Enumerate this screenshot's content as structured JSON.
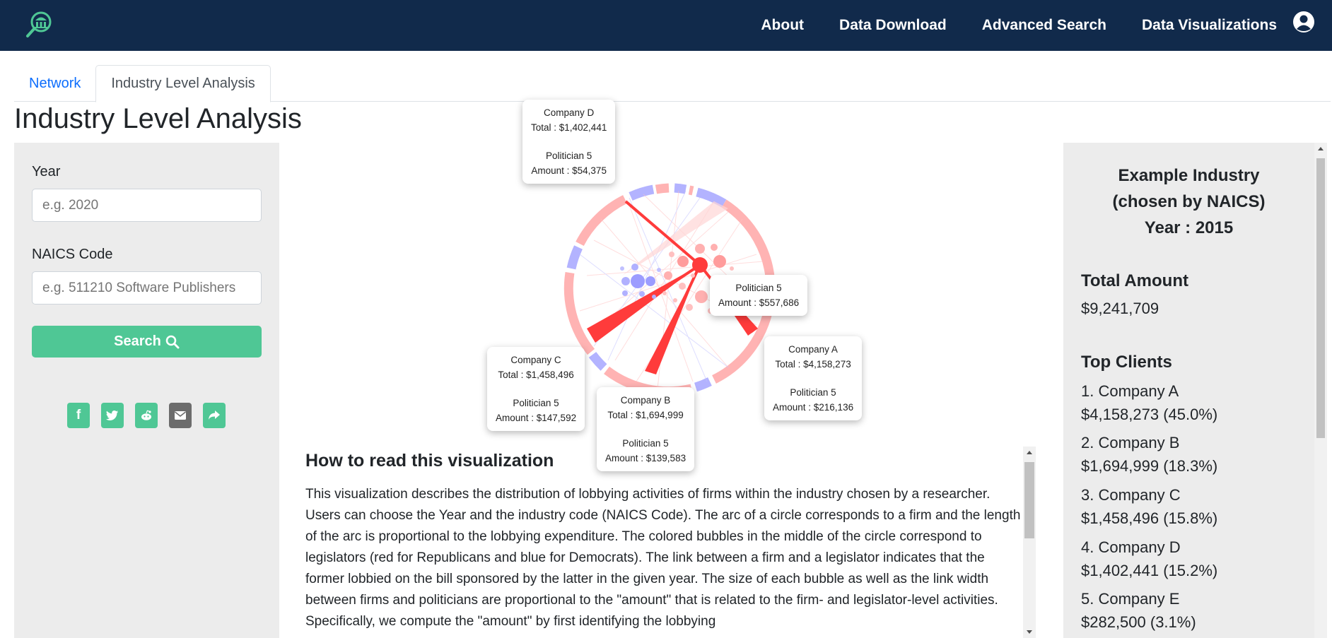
{
  "nav": {
    "links": [
      "About",
      "Data Download",
      "Advanced Search",
      "Data Visualizations"
    ]
  },
  "tabs": [
    "Network",
    "Industry Level Analysis"
  ],
  "page_title": "Industry Level Analysis",
  "form": {
    "year_label": "Year",
    "year_placeholder": "e.g. 2020",
    "naics_label": "NAICS Code",
    "naics_placeholder": "e.g. 511210 Software Publishers",
    "search_label": "Search"
  },
  "share_icons": [
    "facebook-icon",
    "twitter-icon",
    "reddit-icon",
    "email-icon",
    "share-icon"
  ],
  "tooltips": {
    "company_d": {
      "name": "Company D",
      "total": "Total : $1,402,441",
      "politician": "Politician 5",
      "amount": "Amount : $54,375"
    },
    "politician5": {
      "politician": "Politician 5",
      "amount": "Amount : $557,686"
    },
    "company_a": {
      "name": "Company A",
      "total": "Total : $4,158,273",
      "politician": "Politician 5",
      "amount": "Amount : $216,136"
    },
    "company_c": {
      "name": "Company C",
      "total": "Total : $1,458,496",
      "politician": "Politician 5",
      "amount": "Amount : $147,592"
    },
    "company_b": {
      "name": "Company B",
      "total": "Total : $1,694,999",
      "politician": "Politician 5",
      "amount": "Amount : $139,583"
    }
  },
  "howto": {
    "title": "How to read this visualization",
    "text": "This visualization describes the distribution of lobbying activities of firms within the industry chosen by a researcher. Users can choose the Year and the industry code (NAICS Code). The arc of a circle corresponds to a firm and the length of the arc is proportional to the lobbying expenditure. The colored bubbles in the middle of the circle correspond to legislators (red for Republicans and blue for Democrats). The link between a firm and a legislator indicates that the former lobbied on the bill sponsored by the latter in the given year. The size of each bubble as well as the link width between firms and politicians are proportional to the \"amount\" that is related to the firm- and legislator-level activities. Specifically, we compute the \"amount\" by first identifying the lobbying"
  },
  "summary": {
    "title_line1": "Example Industry",
    "title_line2": "(chosen by NAICS)",
    "title_line3": "Year : 2015",
    "total_label": "Total Amount",
    "total_value": "$9,241,709",
    "top_clients_label": "Top Clients",
    "clients": [
      {
        "name": "1. Company A",
        "value": "$4,158,273 (45.0%)"
      },
      {
        "name": "2. Company B",
        "value": "$1,694,999 (18.3%)"
      },
      {
        "name": "3. Company C",
        "value": "$1,458,496 (15.8%)"
      },
      {
        "name": "4. Company D",
        "value": "$1,402,441 (15.2%)"
      },
      {
        "name": "5. Company E",
        "value": "$282,500 (3.1%)"
      }
    ]
  },
  "colors": {
    "navbar": "#112a4b",
    "accent": "#4fc795",
    "republican": "#ff3b3b",
    "democrat": "#6f6fff"
  }
}
